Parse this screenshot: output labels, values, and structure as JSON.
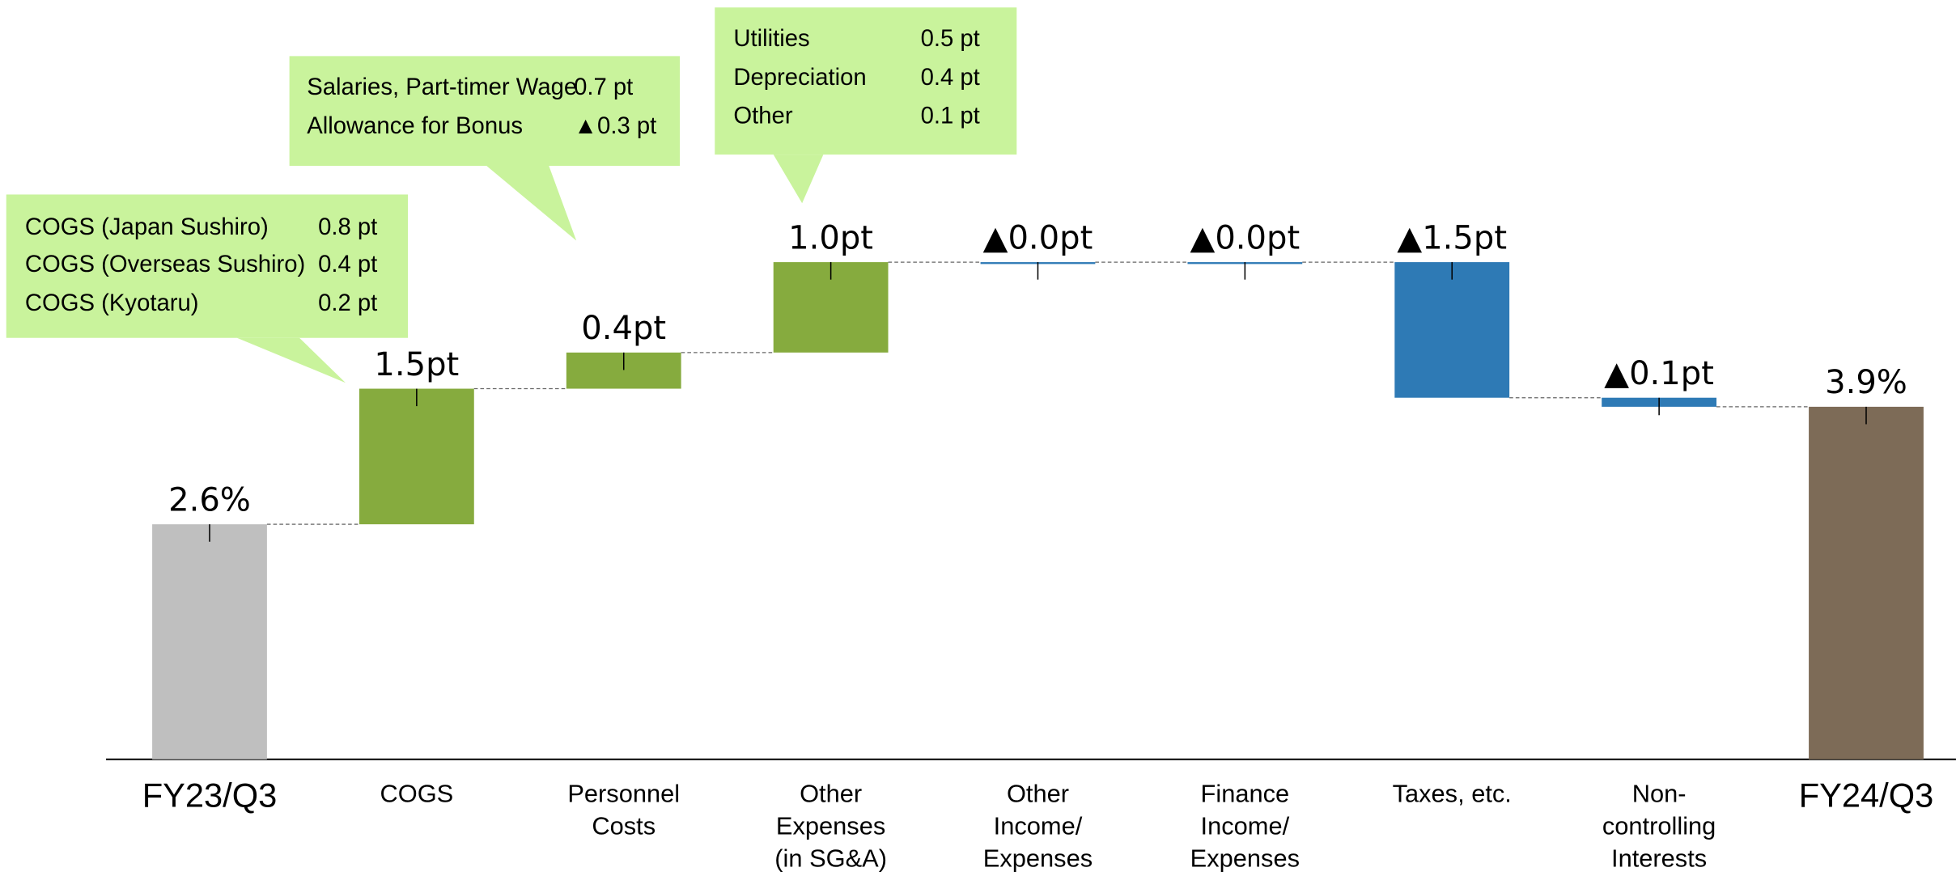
{
  "chart_data": {
    "type": "waterfall",
    "categories": [
      [
        "FY23/Q3"
      ],
      [
        "COGS"
      ],
      [
        "Personnel",
        "Costs"
      ],
      [
        "Other",
        "Expenses",
        "(in SG&A)"
      ],
      [
        "Other",
        "Income/",
        "Expenses"
      ],
      [
        "Finance",
        "Income/",
        "Expenses"
      ],
      [
        "Taxes, etc."
      ],
      [
        "Non-",
        "controlling",
        "Interests"
      ],
      [
        "FY24/Q3"
      ]
    ],
    "values": [
      2.6,
      1.5,
      0.4,
      1.0,
      0,
      0,
      -1.5,
      -0.1,
      3.9
    ],
    "value_labels": [
      "2.6%",
      "1.5pt",
      "0.4pt",
      "1.0pt",
      "▲0.0pt",
      "▲0.0pt",
      "▲1.5pt",
      "▲0.1pt",
      "3.9%"
    ],
    "colors": [
      "#bfbfbf",
      "#86ab3e",
      "#86ab3e",
      "#86ab3e",
      "#2e7ab5",
      "#2e7ab5",
      "#2e7ab5",
      "#2e7ab5",
      "#7d6b57"
    ],
    "ylim": [
      0,
      8.4
    ],
    "annotations": [
      {
        "rows": [
          [
            "COGS (Japan Sushiro)",
            "0.8 pt"
          ],
          [
            "COGS (Overseas Sushiro)",
            "0.4 pt"
          ],
          [
            "COGS (Kyotaru)",
            "0.2 pt"
          ]
        ]
      },
      {
        "rows": [
          [
            "Salaries, Part-timer Wage",
            "0.7 pt"
          ],
          [
            "Allowance for Bonus",
            "▲0.3 pt"
          ]
        ]
      },
      {
        "rows": [
          [
            "Utilities",
            "0.5 pt"
          ],
          [
            "Depreciation",
            "0.4 pt"
          ],
          [
            "Other",
            "0.1 pt"
          ]
        ]
      }
    ],
    "annotation_color": "#c9f39c"
  }
}
